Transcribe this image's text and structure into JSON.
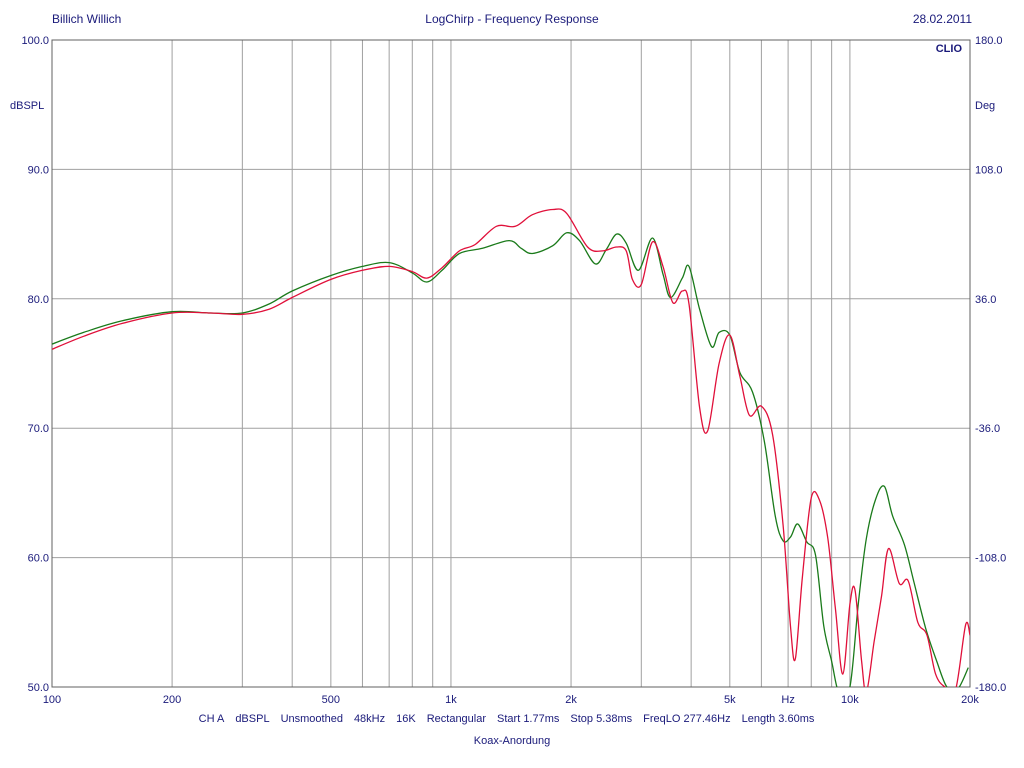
{
  "header": {
    "left": "Billich Willich",
    "center": "LogChirp - Frequency Response",
    "right": "28.02.2011"
  },
  "brand": "CLIO",
  "footer": {
    "params": [
      "CH A",
      "dBSPL",
      "Unsmoothed",
      "48kHz",
      "16K",
      "Rectangular",
      "Start 1.77ms",
      "Stop 5.38ms",
      "FreqLO 277.46Hz",
      "Length 3.60ms"
    ],
    "caption": "Koax-Anordung"
  },
  "chart_data": {
    "type": "line",
    "title": "LogChirp - Frequency Response",
    "xlabel": "Hz",
    "ylabel": "dBSPL",
    "y2label": "Deg",
    "xscale": "log",
    "xlim": [
      100,
      20000
    ],
    "ylim": [
      50,
      100
    ],
    "y2lim": [
      -180,
      180
    ],
    "grid": true,
    "x_ticks": [
      {
        "value": 100,
        "label": "100"
      },
      {
        "value": 200,
        "label": "200"
      },
      {
        "value": 500,
        "label": "500"
      },
      {
        "value": 1000,
        "label": "1k"
      },
      {
        "value": 2000,
        "label": "2k"
      },
      {
        "value": 5000,
        "label": "5k"
      },
      {
        "value": 10000,
        "label": "10k"
      },
      {
        "value": 20000,
        "label": "20k"
      }
    ],
    "y_ticks": [
      {
        "value": 50,
        "label": "50.0"
      },
      {
        "value": 60,
        "label": "60.0"
      },
      {
        "value": 70,
        "label": "70.0"
      },
      {
        "value": 80,
        "label": "80.0"
      },
      {
        "value": 90,
        "label": "90.0"
      },
      {
        "value": 100,
        "label": "100.0"
      }
    ],
    "y2_ticks": [
      {
        "value": -180,
        "label": "-180.0"
      },
      {
        "value": -108,
        "label": "-108.0"
      },
      {
        "value": -36,
        "label": "-36.0"
      },
      {
        "value": 36,
        "label": "36.0"
      },
      {
        "value": 108,
        "label": "108.0"
      },
      {
        "value": 180,
        "label": "180.0"
      }
    ],
    "series": [
      {
        "color": "#1a7a1a",
        "points": [
          [
            100,
            76.5
          ],
          [
            120,
            77.4
          ],
          [
            150,
            78.3
          ],
          [
            200,
            79.0
          ],
          [
            250,
            78.9
          ],
          [
            300,
            78.9
          ],
          [
            350,
            79.6
          ],
          [
            400,
            80.6
          ],
          [
            500,
            81.8
          ],
          [
            600,
            82.5
          ],
          [
            700,
            82.8
          ],
          [
            800,
            82.0
          ],
          [
            870,
            81.3
          ],
          [
            950,
            82.2
          ],
          [
            1050,
            83.5
          ],
          [
            1200,
            83.9
          ],
          [
            1400,
            84.5
          ],
          [
            1500,
            83.9
          ],
          [
            1600,
            83.5
          ],
          [
            1800,
            84.1
          ],
          [
            1950,
            85.1
          ],
          [
            2100,
            84.5
          ],
          [
            2300,
            82.7
          ],
          [
            2450,
            83.8
          ],
          [
            2600,
            85.0
          ],
          [
            2750,
            84.3
          ],
          [
            2950,
            82.2
          ],
          [
            3200,
            84.7
          ],
          [
            3400,
            81.9
          ],
          [
            3550,
            80.1
          ],
          [
            3800,
            81.6
          ],
          [
            3950,
            82.5
          ],
          [
            4200,
            79.2
          ],
          [
            4500,
            76.3
          ],
          [
            4700,
            77.4
          ],
          [
            5000,
            77.2
          ],
          [
            5300,
            74.3
          ],
          [
            5700,
            72.8
          ],
          [
            6100,
            69.0
          ],
          [
            6500,
            63.2
          ],
          [
            6800,
            61.3
          ],
          [
            7100,
            61.6
          ],
          [
            7400,
            62.6
          ],
          [
            7800,
            61.2
          ],
          [
            8200,
            60.2
          ],
          [
            8600,
            54.7
          ],
          [
            9000,
            52.0
          ],
          [
            9400,
            49.5
          ],
          [
            10000,
            50.0
          ],
          [
            10500,
            56.5
          ],
          [
            11000,
            61.5
          ],
          [
            11600,
            64.5
          ],
          [
            12200,
            65.5
          ],
          [
            12800,
            63.2
          ],
          [
            13700,
            61.0
          ],
          [
            14500,
            58.0
          ],
          [
            15500,
            54.5
          ],
          [
            16500,
            52.0
          ],
          [
            17500,
            50.0
          ],
          [
            18600,
            49.8
          ],
          [
            19800,
            51.5
          ]
        ]
      },
      {
        "color": "#e0103a",
        "points": [
          [
            100,
            76.1
          ],
          [
            120,
            77.1
          ],
          [
            150,
            78.1
          ],
          [
            200,
            78.9
          ],
          [
            250,
            78.9
          ],
          [
            300,
            78.8
          ],
          [
            350,
            79.2
          ],
          [
            400,
            80.1
          ],
          [
            500,
            81.5
          ],
          [
            600,
            82.2
          ],
          [
            700,
            82.5
          ],
          [
            800,
            82.1
          ],
          [
            870,
            81.6
          ],
          [
            950,
            82.4
          ],
          [
            1050,
            83.7
          ],
          [
            1150,
            84.2
          ],
          [
            1300,
            85.6
          ],
          [
            1450,
            85.6
          ],
          [
            1600,
            86.5
          ],
          [
            1800,
            86.9
          ],
          [
            1950,
            86.6
          ],
          [
            2200,
            84.0
          ],
          [
            2400,
            83.7
          ],
          [
            2600,
            84.0
          ],
          [
            2750,
            83.7
          ],
          [
            2850,
            81.5
          ],
          [
            3000,
            81.1
          ],
          [
            3200,
            84.4
          ],
          [
            3400,
            82.5
          ],
          [
            3600,
            79.7
          ],
          [
            3800,
            80.6
          ],
          [
            3950,
            79.6
          ],
          [
            4200,
            71.6
          ],
          [
            4400,
            69.8
          ],
          [
            4700,
            75.0
          ],
          [
            5000,
            77.2
          ],
          [
            5300,
            74.0
          ],
          [
            5600,
            71.0
          ],
          [
            6000,
            71.7
          ],
          [
            6400,
            69.5
          ],
          [
            6800,
            62.5
          ],
          [
            7100,
            54.6
          ],
          [
            7300,
            52.2
          ],
          [
            7600,
            58.5
          ],
          [
            8000,
            64.6
          ],
          [
            8400,
            64.4
          ],
          [
            8800,
            61.5
          ],
          [
            9200,
            56.0
          ],
          [
            9600,
            51.0
          ],
          [
            10000,
            56.4
          ],
          [
            10300,
            57.5
          ],
          [
            10700,
            52.0
          ],
          [
            11000,
            49.6
          ],
          [
            11500,
            53.5
          ],
          [
            12000,
            57.0
          ],
          [
            12500,
            60.7
          ],
          [
            13300,
            58.0
          ],
          [
            14000,
            58.2
          ],
          [
            14800,
            55.0
          ],
          [
            15600,
            54.0
          ],
          [
            16400,
            51.0
          ],
          [
            17300,
            50.0
          ],
          [
            18400,
            49.8
          ],
          [
            19500,
            54.8
          ],
          [
            20000,
            54.0
          ]
        ]
      }
    ]
  }
}
